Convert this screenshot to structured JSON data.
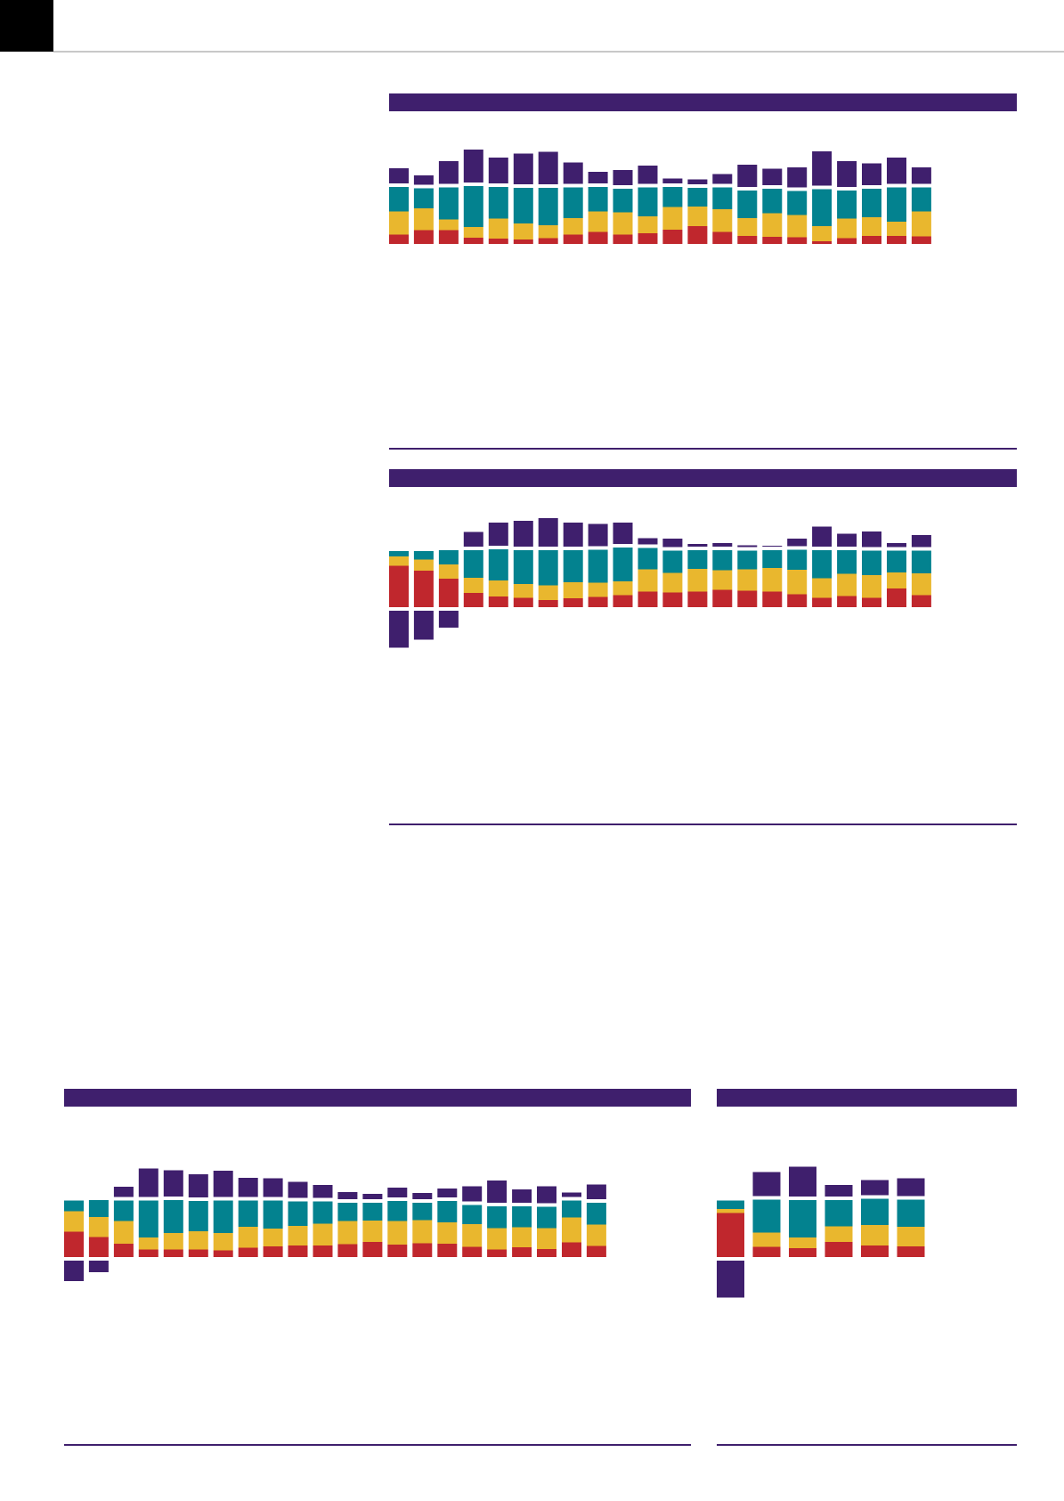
{
  "colors": {
    "purple": "#3f1f6d",
    "teal": "#03828f",
    "yellow": "#e9b72e",
    "red": "#c0272d"
  },
  "chart_data": [
    {
      "type": "bar",
      "stacked": true,
      "series": [
        {
          "color": "red",
          "values": [
            21,
            31,
            31,
            14,
            12,
            10,
            13,
            21,
            27,
            21,
            24,
            32,
            40,
            27,
            18,
            16,
            15,
            6,
            13,
            18,
            18,
            17
          ]
        },
        {
          "color": "yellow",
          "values": [
            52,
            49,
            24,
            24,
            45,
            36,
            29,
            37,
            46,
            50,
            38,
            51,
            44,
            51,
            40,
            53,
            50,
            34,
            44,
            42,
            32,
            56
          ]
        },
        {
          "color": "teal",
          "values": [
            55,
            45,
            72,
            92,
            71,
            80,
            84,
            69,
            55,
            53,
            65,
            45,
            42,
            49,
            62,
            55,
            54,
            83,
            63,
            64,
            77,
            54
          ]
        },
        {
          "color": "purple",
          "values": [
            34,
            21,
            51,
            74,
            58,
            69,
            73,
            48,
            26,
            34,
            41,
            11,
            11,
            22,
            50,
            37,
            45,
            77,
            58,
            49,
            59,
            37
          ]
        }
      ]
    },
    {
      "type": "bar",
      "stacked": true,
      "series": [
        {
          "color": "red",
          "values": [
            93,
            82,
            64,
            32,
            24,
            21,
            16,
            20,
            23,
            27,
            35,
            33,
            35,
            39,
            37,
            35,
            29,
            21,
            25,
            21,
            42,
            27
          ]
        },
        {
          "color": "yellow",
          "values": [
            21,
            25,
            32,
            34,
            36,
            31,
            33,
            36,
            32,
            31,
            50,
            44,
            51,
            44,
            48,
            53,
            55,
            44,
            50,
            51,
            36,
            49
          ]
        },
        {
          "color": "teal",
          "values": [
            12,
            19,
            32,
            62,
            70,
            76,
            79,
            72,
            74,
            76,
            48,
            50,
            42,
            45,
            42,
            40,
            45,
            63,
            53,
            55,
            49,
            51
          ]
        },
        {
          "color": "purple",
          "values": [
            -83,
            -65,
            -38,
            33,
            52,
            58,
            64,
            54,
            50,
            48,
            14,
            19,
            6,
            8,
            4,
            2,
            17,
            45,
            29,
            35,
            9,
            27
          ]
        }
      ]
    },
    {
      "type": "bar",
      "stacked": true,
      "series": [
        {
          "color": "red",
          "values": [
            57,
            45,
            30,
            17,
            17,
            17,
            15,
            21,
            24,
            26,
            26,
            29,
            34,
            28,
            31,
            30,
            23,
            17,
            22,
            18,
            33,
            25
          ]
        },
        {
          "color": "yellow",
          "values": [
            46,
            45,
            51,
            27,
            37,
            41,
            39,
            47,
            40,
            44,
            49,
            52,
            48,
            53,
            52,
            48,
            51,
            48,
            45,
            47,
            56,
            48
          ]
        },
        {
          "color": "teal",
          "values": [
            24,
            38,
            46,
            83,
            74,
            68,
            73,
            59,
            63,
            55,
            50,
            41,
            40,
            45,
            39,
            48,
            43,
            49,
            47,
            48,
            38,
            49
          ]
        },
        {
          "color": "purple",
          "values": [
            -46,
            -26,
            23,
            64,
            59,
            52,
            59,
            43,
            42,
            36,
            29,
            16,
            12,
            22,
            14,
            20,
            34,
            50,
            30,
            38,
            10,
            33
          ]
        }
      ]
    },
    {
      "type": "bar",
      "stacked": true,
      "series": [
        {
          "color": "red",
          "values": [
            99,
            23,
            20,
            34,
            26,
            24
          ]
        },
        {
          "color": "yellow",
          "values": [
            9,
            32,
            24,
            35,
            46,
            44
          ]
        },
        {
          "color": "teal",
          "values": [
            19,
            74,
            84,
            59,
            59,
            61
          ]
        },
        {
          "color": "purple",
          "values": [
            -83,
            54,
            67,
            26,
            34,
            40
          ]
        }
      ]
    }
  ]
}
